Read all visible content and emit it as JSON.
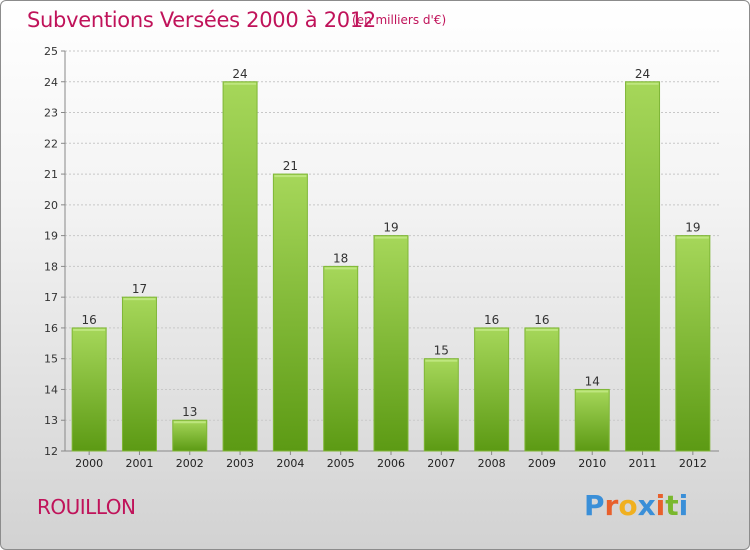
{
  "header": {
    "title": "Subventions Versées 2000 à 2012",
    "subtitle": "(en milliers d'€)"
  },
  "footer": {
    "commune": "ROUILLON",
    "logo_text": "Proxiti",
    "logo_colors": [
      "#3a8fd8",
      "#e8602c",
      "#f0b020",
      "#3a8fd8",
      "#e8602c",
      "#7ab82e",
      "#3a8fd8"
    ]
  },
  "colors": {
    "bar_light": "#a6d75a",
    "bar_dark": "#5c9a14",
    "title": "#c0135a",
    "grid": "#c8c8c8"
  },
  "chart_data": {
    "type": "bar",
    "title": "Subventions Versées 2000 à 2012",
    "subtitle": "(en milliers d'€)",
    "categories": [
      "2000",
      "2001",
      "2002",
      "2003",
      "2004",
      "2005",
      "2006",
      "2007",
      "2008",
      "2009",
      "2010",
      "2011",
      "2012"
    ],
    "values": [
      16,
      17,
      13,
      24,
      21,
      18,
      19,
      15,
      16,
      16,
      14,
      24,
      19
    ],
    "ylim": [
      12,
      25
    ],
    "yticks": [
      12,
      13,
      14,
      15,
      16,
      17,
      18,
      19,
      20,
      21,
      22,
      23,
      24,
      25
    ],
    "grid": "horizontal",
    "data_labels": true
  }
}
